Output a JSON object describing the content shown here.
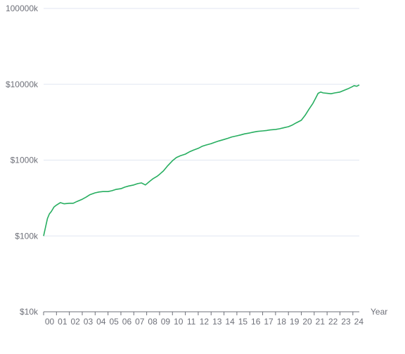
{
  "chart_data": {
    "type": "line",
    "scale": "log",
    "xlabel": "Year",
    "y_ticks": [
      "$10k",
      "$100k",
      "$1000k",
      "$10000k",
      "100000k"
    ],
    "y_tick_values": [
      10,
      100,
      1000,
      10000,
      100000
    ],
    "x_ticks": [
      "00",
      "01",
      "02",
      "03",
      "04",
      "05",
      "06",
      "07",
      "08",
      "09",
      "10",
      "11",
      "12",
      "13",
      "14",
      "15",
      "16",
      "17",
      "18",
      "19",
      "20",
      "21",
      "22",
      "23",
      "24"
    ],
    "xlim": [
      2000,
      2024.5
    ],
    "ylim": [
      10,
      100000
    ],
    "grid": true,
    "line_color": "#27ae60",
    "series": [
      {
        "x": [
          2000.0,
          2000.15,
          2000.3,
          2000.45,
          2000.6,
          2000.8,
          2001.0,
          2001.3,
          2001.6,
          2002.0,
          2002.3,
          2002.6,
          2003.0,
          2003.3,
          2003.6,
          2004.0,
          2004.3,
          2004.6,
          2005.0,
          2005.3,
          2005.6,
          2006.0,
          2006.3,
          2006.6,
          2007.0,
          2007.3,
          2007.6,
          2007.9,
          2008.2,
          2008.5,
          2008.8,
          2009.0,
          2009.3,
          2009.6,
          2010.0,
          2010.3,
          2010.6,
          2011.0,
          2011.3,
          2011.6,
          2012.0,
          2012.3,
          2012.6,
          2013.0,
          2013.3,
          2013.6,
          2014.0,
          2014.3,
          2014.6,
          2015.0,
          2015.3,
          2015.6,
          2016.0,
          2016.3,
          2016.6,
          2017.0,
          2017.3,
          2017.6,
          2018.0,
          2018.3,
          2018.6,
          2019.0,
          2019.3,
          2019.6,
          2020.0,
          2020.3,
          2020.6,
          2020.9,
          2021.1,
          2021.3,
          2021.5,
          2021.7,
          2022.0,
          2022.3,
          2022.6,
          2023.0,
          2023.3,
          2023.6,
          2023.9,
          2024.1,
          2024.3,
          2024.5
        ],
        "values": [
          100,
          130,
          170,
          195,
          210,
          240,
          255,
          275,
          265,
          270,
          270,
          285,
          305,
          325,
          350,
          370,
          380,
          385,
          385,
          395,
          410,
          420,
          440,
          455,
          470,
          490,
          500,
          470,
          520,
          570,
          610,
          650,
          720,
          830,
          980,
          1080,
          1140,
          1200,
          1280,
          1350,
          1430,
          1520,
          1580,
          1650,
          1720,
          1790,
          1870,
          1940,
          2020,
          2090,
          2150,
          2220,
          2280,
          2340,
          2390,
          2430,
          2460,
          2500,
          2540,
          2590,
          2660,
          2760,
          2900,
          3100,
          3350,
          3900,
          4700,
          5600,
          6500,
          7600,
          7900,
          7700,
          7600,
          7500,
          7700,
          7900,
          8300,
          8700,
          9200,
          9600,
          9400,
          9800
        ]
      }
    ]
  }
}
